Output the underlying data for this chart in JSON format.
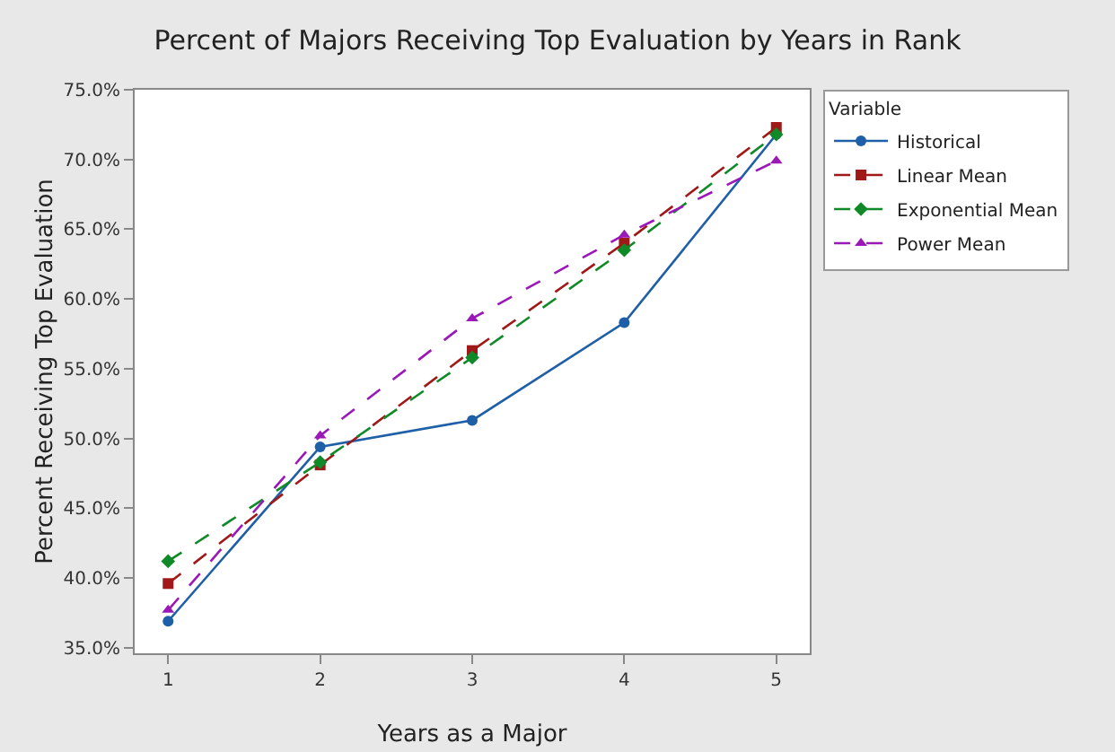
{
  "chart_data": {
    "type": "line",
    "title": "Percent of Majors Receiving Top Evaluation by Years in Rank",
    "xlabel": "Years as a Major",
    "ylabel": "Percent Receiving Top Evaluation",
    "legend_title": "Variable",
    "legend": "top right",
    "grid": false,
    "x": [
      1,
      2,
      3,
      4,
      5
    ],
    "xlim": [
      0.78,
      5.22
    ],
    "xticks": [
      1,
      2,
      3,
      4,
      5
    ],
    "ylim": [
      34.6,
      75
    ],
    "yticks": [
      {
        "value": 35,
        "label": "35.0%"
      },
      {
        "value": 40,
        "label": "40.0%"
      },
      {
        "value": 45,
        "label": "45.0%"
      },
      {
        "value": 50,
        "label": "50.0%"
      },
      {
        "value": 55,
        "label": "55.0%"
      },
      {
        "value": 60,
        "label": "60.0%"
      },
      {
        "value": 65,
        "label": "65.0%"
      },
      {
        "value": 70,
        "label": "70.0%"
      },
      {
        "value": 75,
        "label": "75.0%"
      }
    ],
    "series": [
      {
        "name": "Historical",
        "color": "#1f5fa8",
        "marker": "circle",
        "line_style": "solid",
        "values": [
          36.9,
          49.4,
          51.3,
          58.3,
          71.8
        ]
      },
      {
        "name": "Linear Mean",
        "color": "#a01818",
        "marker": "square",
        "line_style": "dashed",
        "values": [
          39.6,
          48.1,
          56.3,
          64.0,
          72.3
        ]
      },
      {
        "name": "Exponential Mean",
        "color": "#108a28",
        "marker": "diamond",
        "line_style": "dashed",
        "values": [
          41.2,
          48.3,
          55.8,
          63.5,
          71.8
        ]
      },
      {
        "name": "Power Mean",
        "color": "#9a18b8",
        "marker": "triangle",
        "line_style": "dashed",
        "values": [
          37.7,
          50.2,
          58.6,
          64.6,
          69.9
        ]
      }
    ]
  }
}
